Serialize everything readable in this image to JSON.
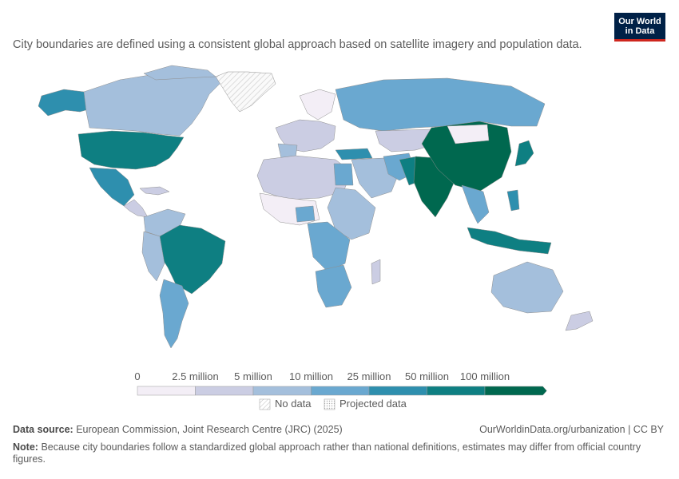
{
  "subtitle": "City boundaries are defined using a consistent global approach based on satellite imagery and population data.",
  "logo": {
    "line1": "Our World",
    "line2": "in Data",
    "bg": "#002147",
    "accent": "#ce261e"
  },
  "legend": {
    "ticks": [
      "0",
      "2.5 million",
      "5 million",
      "10 million",
      "25 million",
      "50 million",
      "100 million"
    ],
    "colors": [
      "#f3eef6",
      "#cbcde3",
      "#a4bfdc",
      "#6aa8d0",
      "#2e8fae",
      "#0e7f82",
      "#00684f"
    ],
    "no_data": "No data",
    "projected": "Projected data"
  },
  "footer": {
    "source_label": "Data source:",
    "source": "European Commission, Joint Research Centre (JRC) (2025)",
    "license": "OurWorldinData.org/urbanization | CC BY",
    "note_label": "Note:",
    "note": "Because city boundaries follow a standardized global approach rather than national definitions, estimates may differ from official country figures."
  }
}
